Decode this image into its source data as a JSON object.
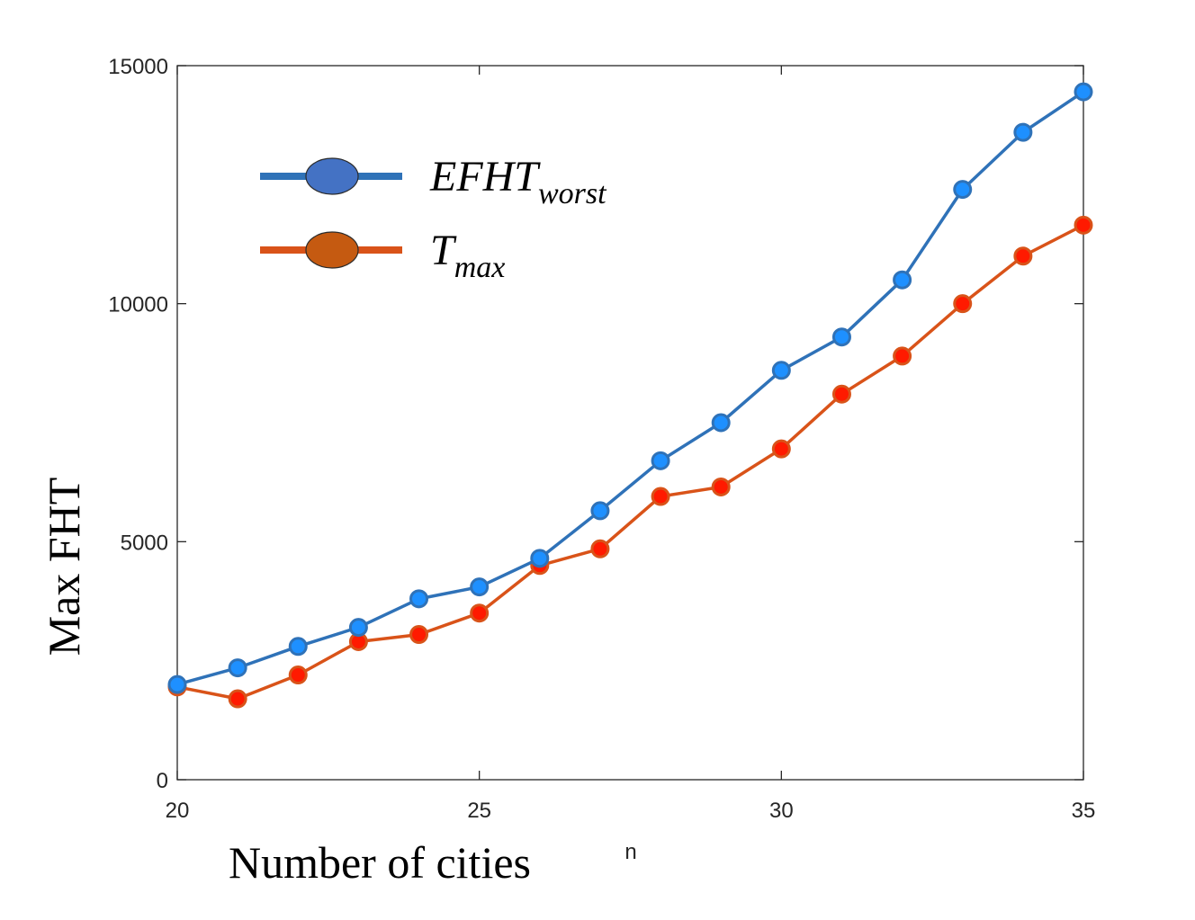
{
  "chart_data": {
    "type": "line",
    "xlabel": "Number of cities",
    "x_axis_symbol": "n",
    "ylabel": "Max FHT",
    "xlim": [
      20,
      35
    ],
    "ylim": [
      0,
      15000
    ],
    "xticks": [
      20,
      25,
      30,
      35
    ],
    "yticks": [
      0,
      5000,
      10000,
      15000
    ],
    "grid": false,
    "legend_placement": "top-left",
    "x": [
      20,
      21,
      22,
      23,
      24,
      25,
      26,
      27,
      28,
      29,
      30,
      31,
      32,
      33,
      34,
      35
    ],
    "series": [
      {
        "name_main": "EFHT",
        "name_sub": "worst",
        "color": "#2f72b8",
        "marker_color": "#1e90ff",
        "legend_marker_color": "#4472c4",
        "values": [
          2000,
          2350,
          2800,
          3200,
          3800,
          4050,
          4650,
          5650,
          6700,
          7500,
          8600,
          9300,
          10500,
          12400,
          13600,
          14450
        ]
      },
      {
        "name_main": "T",
        "name_sub": "max",
        "color": "#d95319",
        "marker_color": "#ff1a00",
        "legend_marker_color": "#c55a11",
        "values": [
          1950,
          1700,
          2200,
          2900,
          3050,
          3500,
          4500,
          4850,
          5950,
          6150,
          6950,
          8100,
          8900,
          10000,
          11000,
          11650
        ]
      }
    ]
  }
}
